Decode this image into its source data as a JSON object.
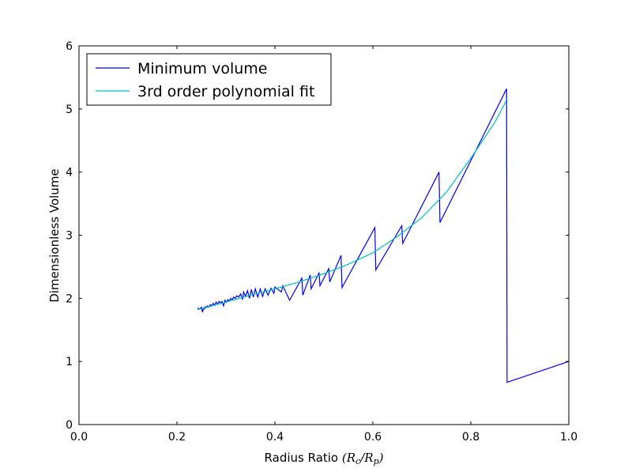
{
  "chart_data": {
    "type": "line",
    "title": "",
    "xlabel_text": "Radius Ratio ",
    "xlabel_math": "(R_c/R_p)",
    "xlabel_math_parts": {
      "open": "(",
      "r1": "R",
      "s1": "c",
      "slash": "/",
      "r2": "R",
      "s2": "p",
      "close": ")"
    },
    "ylabel": "Dimensionless Volume",
    "xlim": [
      0.0,
      1.0
    ],
    "ylim": [
      0,
      6
    ],
    "xticks": [
      0.0,
      0.2,
      0.4,
      0.6,
      0.8,
      1.0
    ],
    "xtick_labels": [
      "0.0",
      "0.2",
      "0.4",
      "0.6",
      "0.8",
      "1.0"
    ],
    "yticks": [
      0,
      1,
      2,
      3,
      4,
      5,
      6
    ],
    "ytick_labels": [
      "0",
      "1",
      "2",
      "3",
      "4",
      "5",
      "6"
    ],
    "grid": false,
    "legend_position": "top-left",
    "series": [
      {
        "name": "Minimum volume",
        "color": "#0000ff",
        "x": [
          0.242,
          0.245,
          0.248,
          0.25,
          0.252,
          0.254,
          0.256,
          0.258,
          0.26,
          0.262,
          0.265,
          0.268,
          0.271,
          0.274,
          0.277,
          0.28,
          0.283,
          0.286,
          0.289,
          0.292,
          0.295,
          0.298,
          0.301,
          0.304,
          0.307,
          0.31,
          0.313,
          0.316,
          0.319,
          0.322,
          0.326,
          0.33,
          0.334,
          0.336,
          0.34,
          0.344,
          0.348,
          0.352,
          0.356,
          0.36,
          0.365,
          0.37,
          0.375,
          0.38,
          0.386,
          0.392,
          0.398,
          0.4,
          0.413,
          0.416,
          0.43,
          0.455,
          0.457,
          0.472,
          0.474,
          0.49,
          0.492,
          0.51,
          0.512,
          0.535,
          0.537,
          0.604,
          0.606,
          0.659,
          0.661,
          0.735,
          0.737,
          0.873,
          0.874,
          1.0
        ],
        "y": [
          1.85,
          1.83,
          1.84,
          1.86,
          1.78,
          1.84,
          1.83,
          1.87,
          1.85,
          1.88,
          1.86,
          1.9,
          1.88,
          1.92,
          1.89,
          1.94,
          1.91,
          1.95,
          1.93,
          1.95,
          1.88,
          1.97,
          1.94,
          1.98,
          1.96,
          2.0,
          1.98,
          2.02,
          2.0,
          2.04,
          2.02,
          2.07,
          1.98,
          2.1,
          2.03,
          2.12,
          2.0,
          2.14,
          2.02,
          2.15,
          2.02,
          2.15,
          2.03,
          2.15,
          2.05,
          2.16,
          2.08,
          2.18,
          2.1,
          2.2,
          1.97,
          2.32,
          2.05,
          2.37,
          2.15,
          2.4,
          2.2,
          2.47,
          2.26,
          2.68,
          2.17,
          3.12,
          2.45,
          3.15,
          2.87,
          4.0,
          3.2,
          5.32,
          0.67,
          1.0
        ]
      },
      {
        "name": "3rd order polynomial fit",
        "color": "#00bfbf",
        "x": [
          0.242,
          0.3,
          0.35,
          0.4,
          0.45,
          0.5,
          0.55,
          0.6,
          0.65,
          0.7,
          0.75,
          0.8,
          0.85,
          0.873
        ],
        "y": [
          1.82,
          1.94,
          2.05,
          2.15,
          2.26,
          2.39,
          2.54,
          2.72,
          2.98,
          3.28,
          3.68,
          4.22,
          4.8,
          5.14
        ]
      }
    ]
  }
}
